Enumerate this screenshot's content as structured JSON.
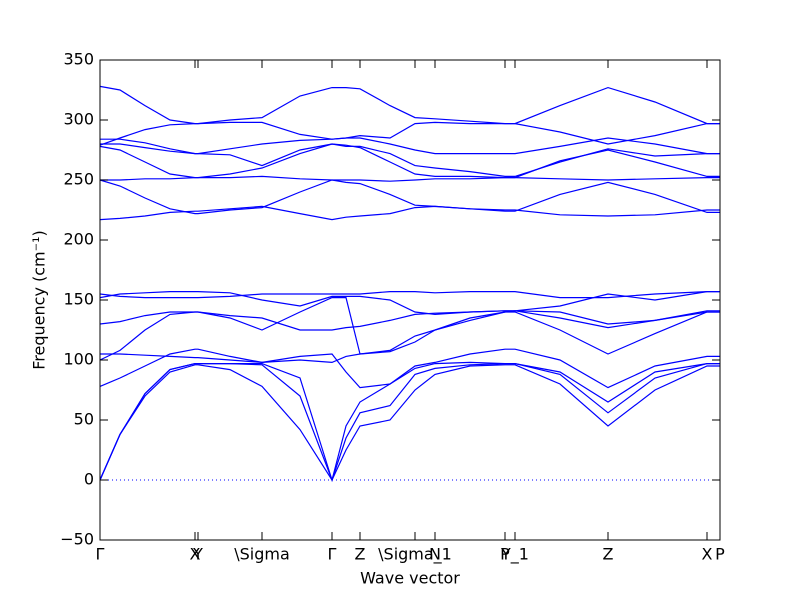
{
  "chart_data": {
    "type": "line",
    "xlabel": "Wave vector",
    "ylabel": "Frequency (cm⁻¹)",
    "xlim": [
      0,
      620
    ],
    "ylim": [
      -50,
      350
    ],
    "yticks": [
      {
        "value": -50,
        "label": "−50"
      },
      0,
      50,
      100,
      150,
      200,
      250,
      300,
      350
    ],
    "xticks": [
      {
        "value": 0,
        "label": "Γ"
      },
      {
        "value": 95,
        "label": "X"
      },
      {
        "value": 98,
        "label": "Y"
      },
      {
        "value": 162,
        "label": "\\Sigma"
      },
      {
        "value": 232,
        "label": "Γ"
      },
      {
        "value": 260,
        "label": "Z"
      },
      {
        "value": 315,
        "label": "\\Sigma_1"
      },
      {
        "value": 335,
        "label": "N"
      },
      {
        "value": 405,
        "label": "P"
      },
      {
        "value": 415,
        "label": "Y_1"
      },
      {
        "value": 508,
        "label": "Z"
      },
      {
        "value": 607,
        "label": "X"
      },
      {
        "value": 620,
        "label": "P"
      }
    ],
    "hline": 0,
    "x": [
      0,
      20,
      45,
      70,
      95,
      98,
      130,
      162,
      200,
      232,
      246,
      260,
      290,
      315,
      335,
      370,
      405,
      415,
      460,
      508,
      555,
      607,
      620
    ],
    "series": [
      {
        "color": "#0000ff",
        "values": [
          0,
          38,
          70,
          90,
          96,
          96,
          92,
          78,
          42,
          0,
          25,
          45,
          50,
          75,
          88,
          95,
          96,
          96,
          80,
          45,
          75,
          95,
          95
        ]
      },
      {
        "color": "#0000ff",
        "values": [
          0,
          38,
          72,
          92,
          97,
          97,
          97,
          96,
          70,
          0,
          35,
          56,
          62,
          88,
          93,
          96,
          97,
          97,
          88,
          56,
          85,
          97,
          97
        ]
      },
      {
        "color": "#0000ff",
        "values": [
          0,
          38,
          72,
          92,
          97,
          97,
          97,
          97,
          85,
          0,
          45,
          65,
          80,
          93,
          97,
          98,
          97,
          97,
          90,
          65,
          90,
          97,
          97
        ]
      },
      {
        "color": "#0000ff",
        "values": [
          78,
          85,
          95,
          105,
          109,
          109,
          103,
          98,
          103,
          105,
          90,
          77,
          80,
          95,
          98,
          105,
          109,
          109,
          100,
          77,
          95,
          103,
          103
        ]
      },
      {
        "color": "#0000ff",
        "values": [
          100,
          108,
          125,
          138,
          140,
          140,
          135,
          125,
          140,
          152,
          152,
          105,
          108,
          120,
          125,
          135,
          140,
          140,
          125,
          105,
          122,
          140,
          140
        ]
      },
      {
        "color": "#0000ff",
        "values": [
          105,
          105,
          104,
          103,
          102,
          102,
          100,
          98,
          100,
          98,
          103,
          105,
          107,
          115,
          125,
          133,
          140,
          141,
          140,
          130,
          133,
          141,
          141
        ]
      },
      {
        "color": "#0000ff",
        "values": [
          130,
          132,
          137,
          140,
          140,
          140,
          137,
          135,
          125,
          125,
          127,
          128,
          133,
          138,
          139,
          140,
          141,
          141,
          135,
          127,
          133,
          140,
          140
        ]
      },
      {
        "color": "#0000ff",
        "values": [
          152,
          155,
          156,
          157,
          157,
          157,
          156,
          150,
          145,
          153,
          153,
          153,
          150,
          140,
          138,
          140,
          141,
          141,
          145,
          155,
          150,
          157,
          157
        ]
      },
      {
        "color": "#0000ff",
        "values": [
          155,
          153,
          152,
          152,
          152,
          152,
          153,
          155,
          155,
          155,
          155,
          155,
          157,
          157,
          156,
          157,
          157,
          157,
          152,
          152,
          155,
          157,
          157
        ]
      },
      {
        "color": "#0000ff",
        "values": [
          217,
          218,
          220,
          223,
          224,
          224,
          226,
          228,
          222,
          217,
          219,
          220,
          222,
          227,
          228,
          226,
          225,
          225,
          221,
          220,
          221,
          225,
          225
        ]
      },
      {
        "color": "#0000ff",
        "values": [
          250,
          245,
          235,
          226,
          222,
          222,
          225,
          227,
          240,
          250,
          248,
          247,
          238,
          229,
          228,
          226,
          224,
          224,
          238,
          248,
          238,
          223,
          223
        ]
      },
      {
        "color": "#0000ff",
        "values": [
          250,
          250,
          251,
          251,
          252,
          252,
          252,
          253,
          251,
          250,
          250,
          250,
          249,
          250,
          251,
          251,
          252,
          252,
          251,
          250,
          251,
          252,
          252
        ]
      },
      {
        "color": "#0000ff",
        "values": [
          278,
          275,
          265,
          255,
          252,
          252,
          255,
          260,
          272,
          280,
          279,
          277,
          265,
          255,
          253,
          253,
          252,
          252,
          266,
          275,
          265,
          253,
          253
        ]
      },
      {
        "color": "#0000ff",
        "values": [
          280,
          280,
          277,
          274,
          272,
          272,
          271,
          262,
          275,
          280,
          278,
          278,
          272,
          262,
          260,
          257,
          253,
          253,
          265,
          276,
          270,
          272,
          272
        ]
      },
      {
        "color": "#0000ff",
        "values": [
          284,
          284,
          281,
          276,
          272,
          272,
          276,
          280,
          283,
          284,
          285,
          285,
          280,
          275,
          272,
          272,
          272,
          272,
          278,
          285,
          280,
          272,
          272
        ]
      },
      {
        "color": "#0000ff",
        "values": [
          279,
          285,
          292,
          296,
          297,
          297,
          298,
          298,
          288,
          284,
          285,
          287,
          285,
          297,
          298,
          297,
          297,
          297,
          290,
          280,
          287,
          297,
          297
        ]
      },
      {
        "color": "#0000ff",
        "values": [
          328,
          325,
          312,
          300,
          297,
          297,
          300,
          302,
          320,
          327,
          327,
          326,
          312,
          302,
          301,
          299,
          297,
          297,
          312,
          327,
          315,
          297,
          297
        ]
      }
    ]
  }
}
